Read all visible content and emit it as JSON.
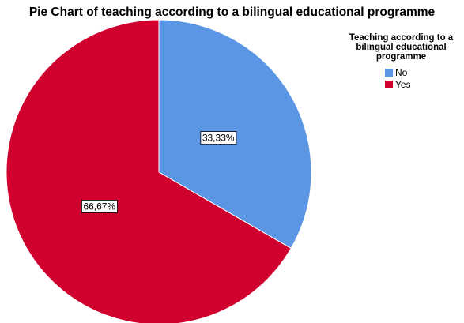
{
  "chart_data": {
    "type": "pie",
    "title": "Pie Chart of teaching according to a bilingual educational programme",
    "legend": {
      "title": [
        "Teaching according to a",
        "bilingual educational",
        "programme"
      ],
      "placement": "top-right"
    },
    "slices": [
      {
        "label": "No",
        "value": 33.33,
        "display": "33,33%",
        "color": "#5a96e3"
      },
      {
        "label": "Yes",
        "value": 66.67,
        "display": "66,67%",
        "color": "#d0002f"
      }
    ]
  }
}
